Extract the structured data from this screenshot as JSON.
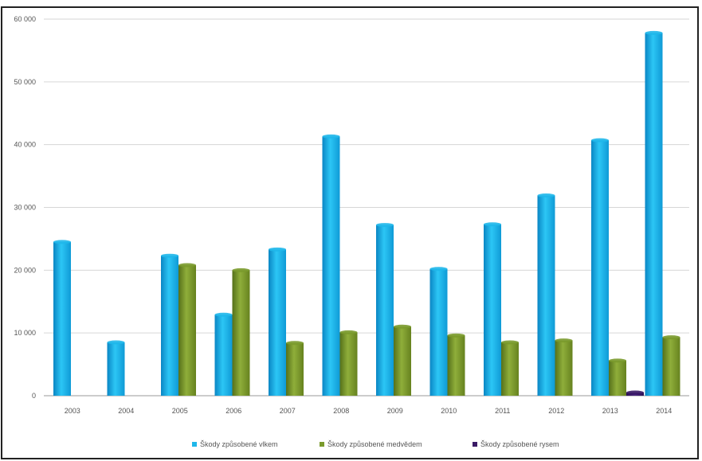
{
  "chart_data": {
    "type": "bar",
    "title": "",
    "xlabel": "",
    "ylabel": "",
    "categories": [
      "2003",
      "2004",
      "2005",
      "2006",
      "2007",
      "2008",
      "2009",
      "2010",
      "2011",
      "2012",
      "2013",
      "2014"
    ],
    "series": [
      {
        "name": "Škody způsobené vlkem",
        "color": "#1fb7ea",
        "values": [
          24500,
          8500,
          22300,
          12900,
          23300,
          41300,
          27200,
          20200,
          27300,
          31900,
          40700,
          57800
        ]
      },
      {
        "name": "Škody způsobené medvědem",
        "color": "#7a9a2c",
        "values": [
          0,
          0,
          20800,
          20000,
          8400,
          10100,
          11000,
          9600,
          8500,
          8800,
          5600,
          9300
        ]
      },
      {
        "name": "Škody způsobené rysem",
        "color": "#3a1a66",
        "values": [
          0,
          0,
          0,
          0,
          0,
          0,
          0,
          0,
          0,
          0,
          500,
          0
        ]
      }
    ],
    "ylim": [
      0,
      60000
    ],
    "yticks": [
      "0",
      "10 000",
      "20 000",
      "30 000",
      "40 000",
      "50 000",
      "60 000"
    ],
    "grid": true,
    "legend": "bottom"
  }
}
